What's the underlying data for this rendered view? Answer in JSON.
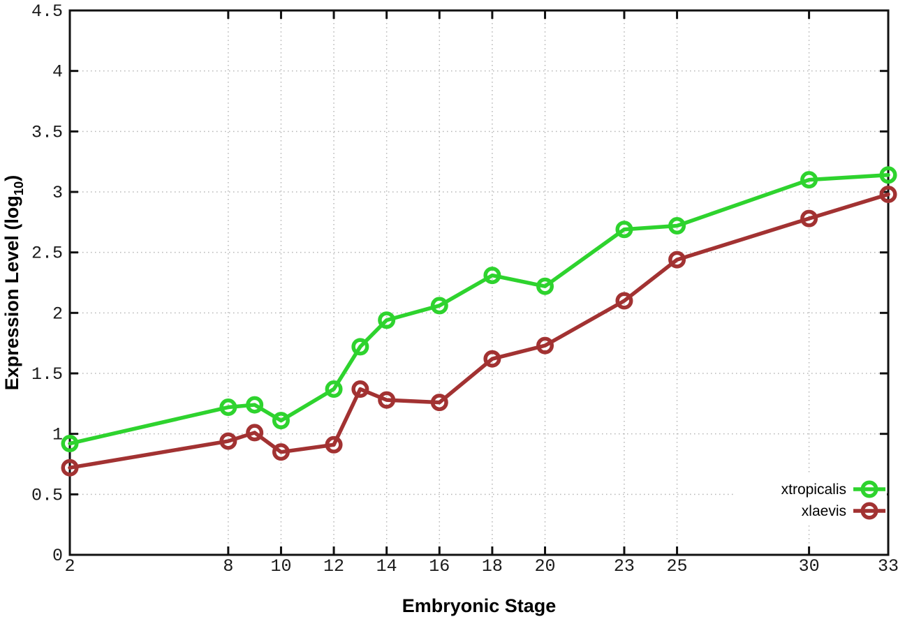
{
  "chart_data": {
    "type": "line",
    "title": "",
    "xlabel": "Embryonic Stage",
    "ylabel": {
      "pre": "Expression Level (log",
      "sub": "10",
      "post": ")"
    },
    "x": [
      2,
      8,
      9,
      10,
      12,
      13,
      14,
      16,
      18,
      20,
      23,
      25,
      30,
      33
    ],
    "series": [
      {
        "name": "xtropicalis",
        "color": "#2ed32e",
        "values": [
          0.92,
          1.22,
          1.24,
          1.11,
          1.37,
          1.72,
          1.94,
          2.06,
          2.31,
          2.22,
          2.69,
          2.72,
          3.1,
          3.14
        ]
      },
      {
        "name": "xlaevis",
        "color": "#a23232",
        "values": [
          0.72,
          0.94,
          1.01,
          0.85,
          0.91,
          1.37,
          1.28,
          1.26,
          1.62,
          1.73,
          2.1,
          2.44,
          2.78,
          2.98
        ]
      }
    ],
    "x_ticks": [
      2,
      8,
      10,
      12,
      14,
      16,
      18,
      20,
      23,
      25,
      30,
      33
    ],
    "y_ticks": [
      0,
      0.5,
      1,
      1.5,
      2,
      2.5,
      3,
      3.5,
      4,
      4.5
    ],
    "xlim": [
      2,
      33
    ],
    "ylim": [
      0,
      4.5
    ],
    "grid": true,
    "legend_position": "inside-bottom-right",
    "marker": "open-circle",
    "grid_color": "#b5b5b5",
    "border_color": "#111111",
    "background_color": "#ffffff"
  }
}
